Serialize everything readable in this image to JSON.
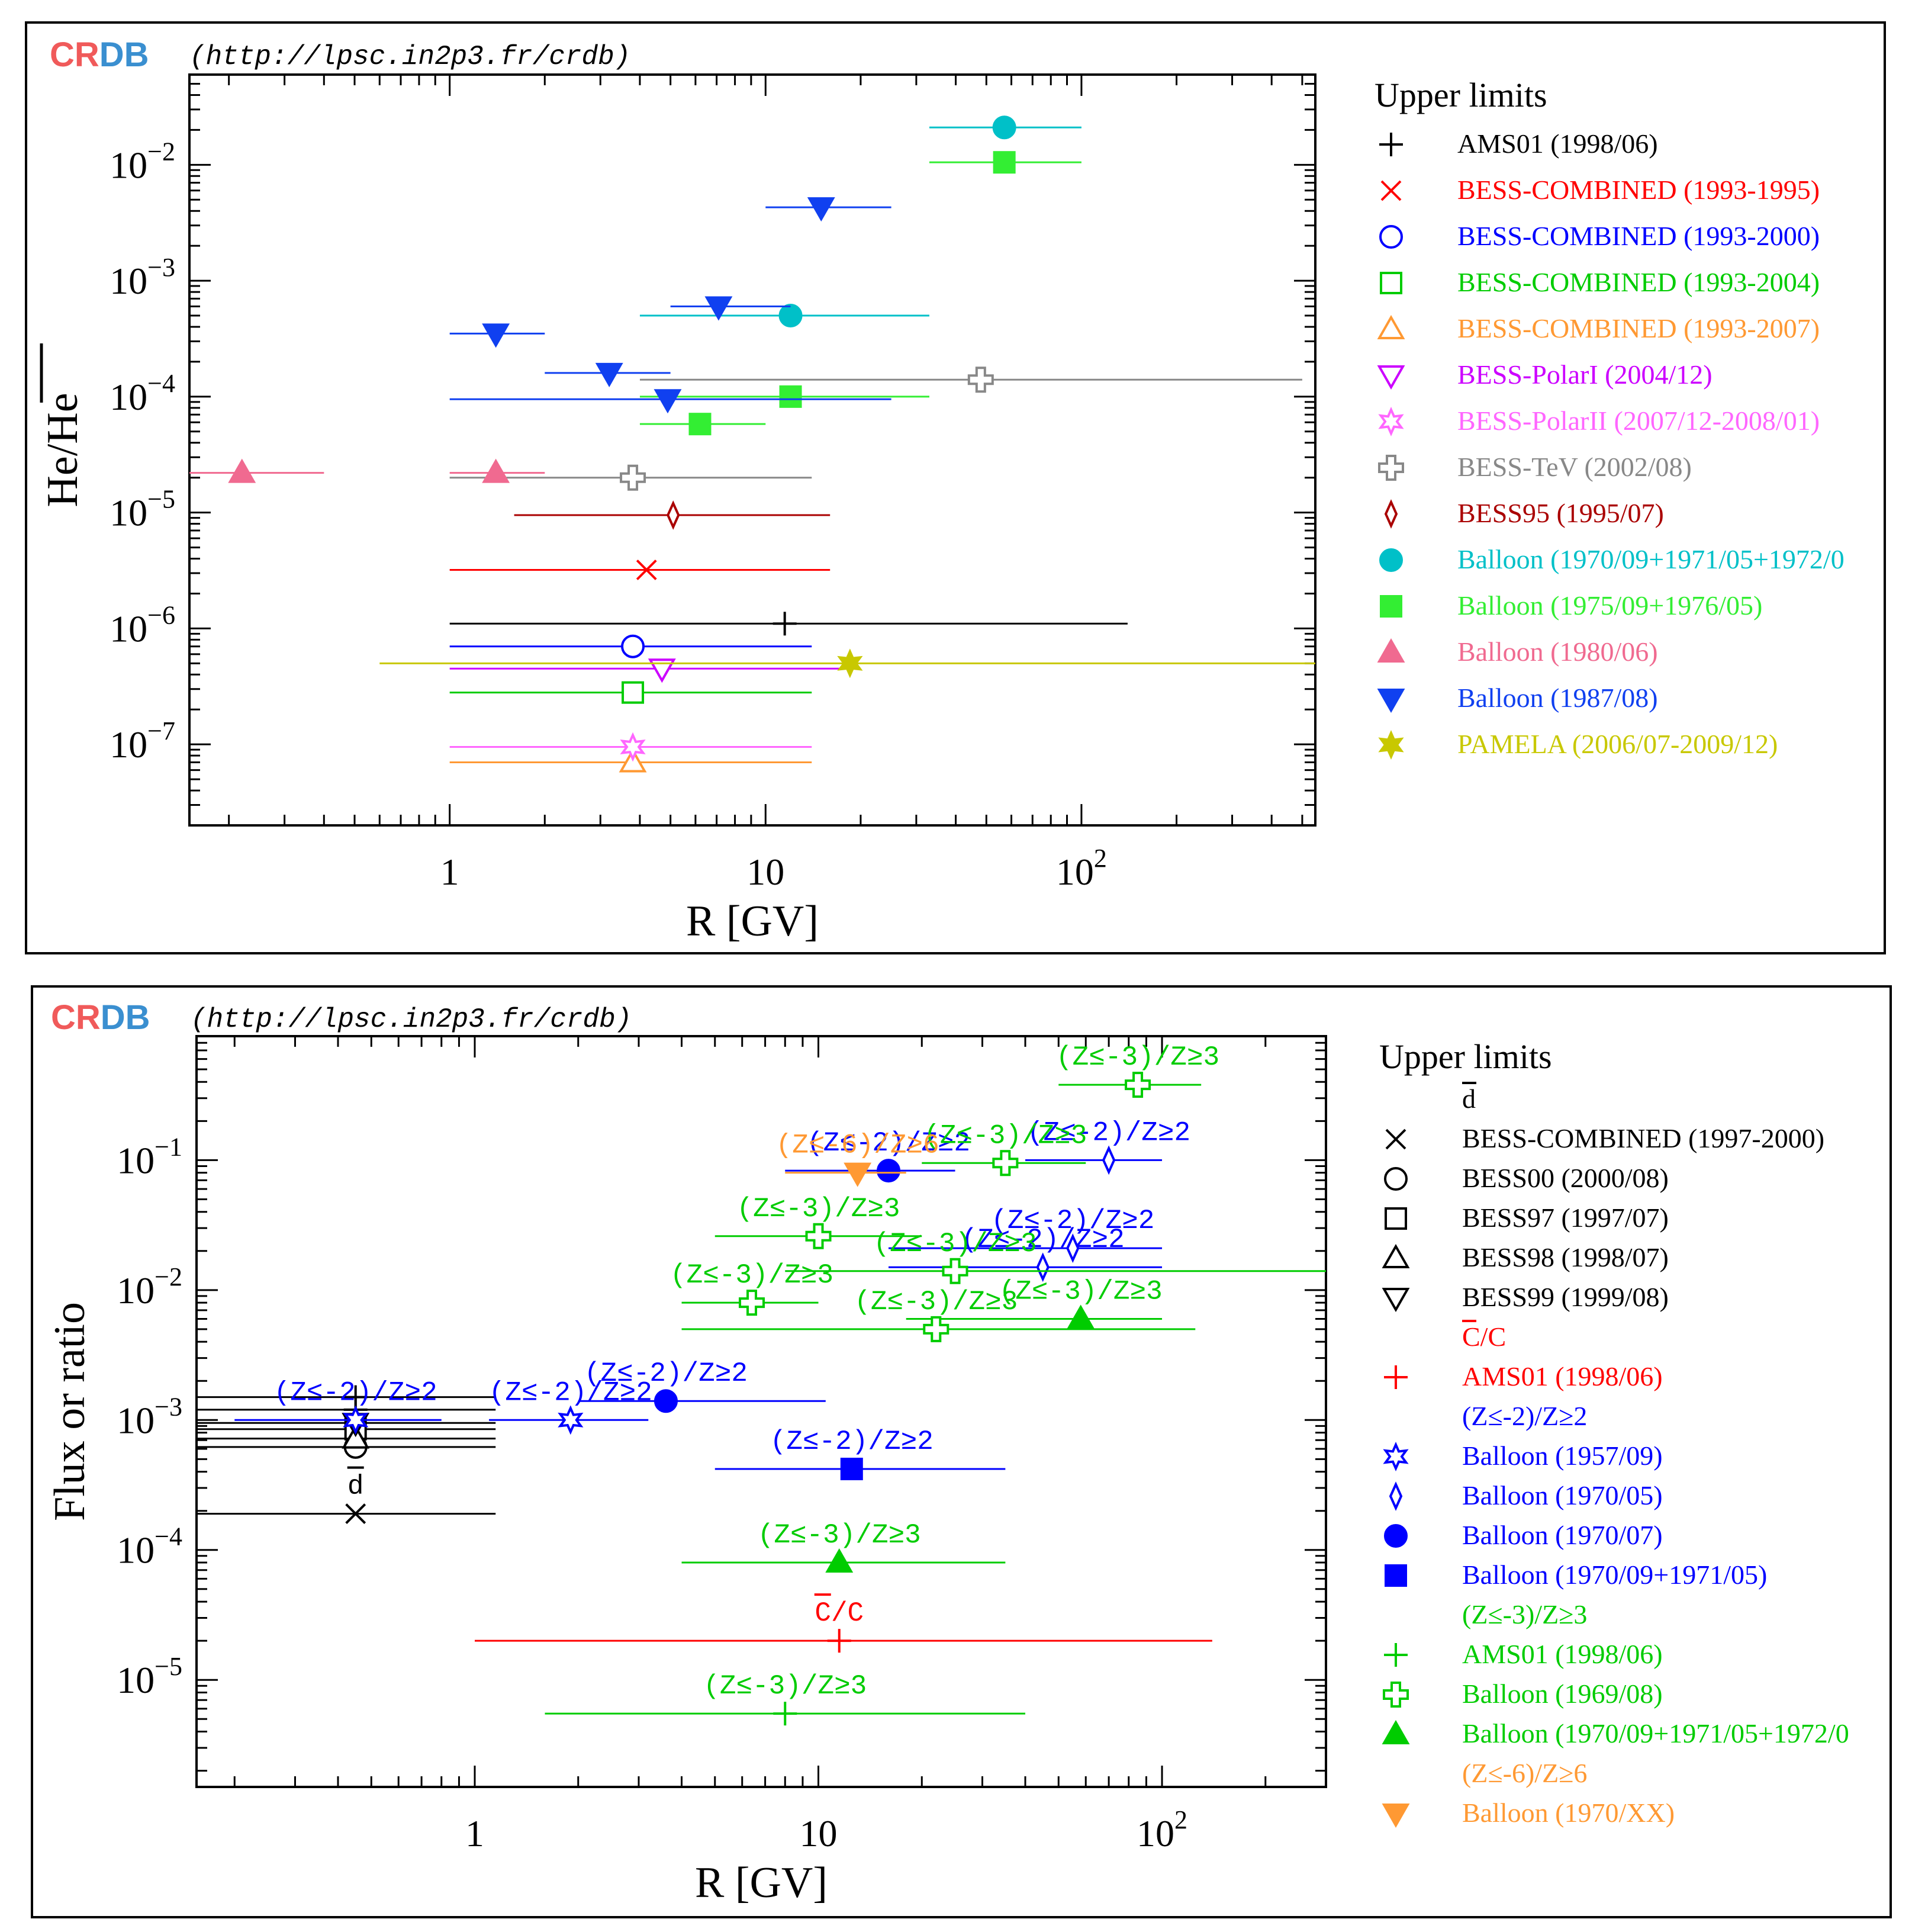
{
  "brand": {
    "crdb_cr": "CR",
    "crdb_db": "DB",
    "url": "(http://lpsc.in2p3.fr/crdb)",
    "cr_color": "#f05a5a",
    "db_color": "#3a8fd0"
  },
  "chart_data": [
    {
      "type": "scatter",
      "xscale": "log",
      "yscale": "log",
      "xlim": [
        0.15,
        550
      ],
      "ylim": [
        2e-08,
        0.06
      ],
      "xlabel": "R [GV]",
      "ylabel": "He/He",
      "ylabel_overline": true,
      "xticks": [
        {
          "v": 1,
          "label": "1"
        },
        {
          "v": 10,
          "label": "10"
        },
        {
          "v": 100,
          "base": "10",
          "exp": "2"
        }
      ],
      "yticks": [
        {
          "v": 1e-07,
          "exp": "−7"
        },
        {
          "v": 1e-06,
          "exp": "−6"
        },
        {
          "v": 1e-05,
          "exp": "−5"
        },
        {
          "v": 0.0001,
          "exp": "−4"
        },
        {
          "v": 0.001,
          "exp": "−3"
        },
        {
          "v": 0.01,
          "exp": "−2"
        }
      ],
      "legend_title": "Upper limits",
      "legend": [
        {
          "label": "AMS01 (1998/06)",
          "color": "#000000",
          "marker": "plus"
        },
        {
          "label": "BESS-COMBINED (1993-1995)",
          "color": "#ff0000",
          "marker": "cross"
        },
        {
          "label": "BESS-COMBINED (1993-2000)",
          "color": "#0000ff",
          "marker": "circle-open"
        },
        {
          "label": "BESS-COMBINED (1993-2004)",
          "color": "#00cc00",
          "marker": "square-open"
        },
        {
          "label": "BESS-COMBINED (1993-2007)",
          "color": "#ff9933",
          "marker": "triangle-up-open"
        },
        {
          "label": "BESS-PolarI (2004/12)",
          "color": "#cc00ff",
          "marker": "triangle-down-open"
        },
        {
          "label": "BESS-PolarII (2007/12-2008/01)",
          "color": "#ff66ff",
          "marker": "star-open"
        },
        {
          "label": "BESS-TeV (2002/08)",
          "color": "#888888",
          "marker": "cross-open"
        },
        {
          "label": "BESS95 (1995/07)",
          "color": "#aa0000",
          "marker": "diamond-open"
        },
        {
          "label": "Balloon (1970/09+1971/05+1972/0",
          "color": "#00c0c8",
          "marker": "circle-filled"
        },
        {
          "label": "Balloon (1975/09+1976/05)",
          "color": "#33ee33",
          "marker": "square-filled"
        },
        {
          "label": "Balloon (1980/06)",
          "color": "#f06a90",
          "marker": "triangle-up-filled"
        },
        {
          "label": "Balloon (1987/08)",
          "color": "#1040f0",
          "marker": "triangle-down-filled"
        },
        {
          "label": "PAMELA (2006/07-2009/12)",
          "color": "#c8c800",
          "marker": "star-filled"
        }
      ],
      "points": [
        {
          "x": 11.5,
          "y": 1.1e-06,
          "xlo": 1.0,
          "xhi": 140,
          "color": "#000000",
          "marker": "plus"
        },
        {
          "x": 4.2,
          "y": 3.2e-06,
          "xlo": 1.0,
          "xhi": 16,
          "color": "#ff0000",
          "marker": "cross"
        },
        {
          "x": 3.8,
          "y": 7e-07,
          "xlo": 1.0,
          "xhi": 14,
          "color": "#0000ff",
          "marker": "circle-open"
        },
        {
          "x": 3.8,
          "y": 2.8e-07,
          "xlo": 1.0,
          "xhi": 14,
          "color": "#00cc00",
          "marker": "square-open"
        },
        {
          "x": 3.8,
          "y": 7e-08,
          "xlo": 1.0,
          "xhi": 14,
          "color": "#ff9933",
          "marker": "triangle-up-open"
        },
        {
          "x": 4.7,
          "y": 4.5e-07,
          "xlo": 1.0,
          "xhi": 20,
          "color": "#cc00ff",
          "marker": "triangle-down-open"
        },
        {
          "x": 3.8,
          "y": 9.5e-08,
          "xlo": 1.0,
          "xhi": 14,
          "color": "#ff66ff",
          "marker": "star-open"
        },
        {
          "x": 48,
          "y": 0.00014,
          "xlo": 4.0,
          "xhi": 500,
          "color": "#888888",
          "marker": "cross-open"
        },
        {
          "x": 3.8,
          "y": 2e-05,
          "xlo": 1.0,
          "xhi": 14,
          "color": "#888888",
          "marker": "cross-open"
        },
        {
          "x": 5.1,
          "y": 9.5e-06,
          "xlo": 1.6,
          "xhi": 16,
          "color": "#aa0000",
          "marker": "diamond-open"
        },
        {
          "x": 57,
          "y": 0.021,
          "xlo": 33,
          "xhi": 100,
          "color": "#00c0c8",
          "marker": "circle-filled"
        },
        {
          "x": 12,
          "y": 0.0005,
          "xlo": 4.0,
          "xhi": 33,
          "color": "#00c0c8",
          "marker": "circle-filled"
        },
        {
          "x": 57,
          "y": 0.0105,
          "xlo": 33,
          "xhi": 100,
          "color": "#33ee33",
          "marker": "square-filled"
        },
        {
          "x": 12,
          "y": 0.0001,
          "xlo": 4.0,
          "xhi": 33,
          "color": "#33ee33",
          "marker": "square-filled"
        },
        {
          "x": 6.2,
          "y": 5.8e-05,
          "xlo": 4.0,
          "xhi": 10,
          "color": "#33ee33",
          "marker": "square-filled"
        },
        {
          "x": 0.22,
          "y": 2.2e-05,
          "xlo": 0.15,
          "xhi": 0.4,
          "color": "#f06a90",
          "marker": "triangle-up-filled"
        },
        {
          "x": 1.4,
          "y": 2.2e-05,
          "xlo": 1.0,
          "xhi": 2.0,
          "color": "#f06a90",
          "marker": "triangle-up-filled"
        },
        {
          "x": 1.4,
          "y": 0.00035,
          "xlo": 1.0,
          "xhi": 2.0,
          "color": "#1040f0",
          "marker": "triangle-down-filled"
        },
        {
          "x": 3.2,
          "y": 0.00016,
          "xlo": 2.0,
          "xhi": 5.0,
          "color": "#1040f0",
          "marker": "triangle-down-filled"
        },
        {
          "x": 4.9,
          "y": 9.5e-05,
          "xlo": 1.0,
          "xhi": 25,
          "color": "#1040f0",
          "marker": "triangle-down-filled"
        },
        {
          "x": 7.1,
          "y": 0.0006,
          "xlo": 5.0,
          "xhi": 12,
          "color": "#1040f0",
          "marker": "triangle-down-filled"
        },
        {
          "x": 15,
          "y": 0.0043,
          "xlo": 10,
          "xhi": 25,
          "color": "#1040f0",
          "marker": "triangle-down-filled"
        },
        {
          "x": 18.5,
          "y": 5e-07,
          "xlo": 0.6,
          "xhi": 550,
          "color": "#c8c800",
          "marker": "star-filled"
        }
      ]
    },
    {
      "type": "scatter",
      "xscale": "log",
      "yscale": "log",
      "xlim": [
        0.155,
        300
      ],
      "ylim": [
        1.5e-06,
        0.9
      ],
      "xlabel": "R [GV]",
      "ylabel": "Flux or ratio",
      "xticks": [
        {
          "v": 1,
          "label": "1"
        },
        {
          "v": 10,
          "label": "10"
        },
        {
          "v": 100,
          "base": "10",
          "exp": "2"
        }
      ],
      "yticks": [
        {
          "v": 1e-05,
          "exp": "−5"
        },
        {
          "v": 0.0001,
          "exp": "−4"
        },
        {
          "v": 0.001,
          "exp": "−3"
        },
        {
          "v": 0.01,
          "exp": "−2"
        },
        {
          "v": 0.1,
          "exp": "−1"
        }
      ],
      "legend_title": "Upper limits",
      "legend": [
        {
          "label": "d",
          "color": "#000000",
          "marker": "none",
          "overline": true
        },
        {
          "label": "BESS-COMBINED (1997-2000)",
          "color": "#000000",
          "marker": "cross"
        },
        {
          "label": "BESS00 (2000/08)",
          "color": "#000000",
          "marker": "circle-open"
        },
        {
          "label": "BESS97 (1997/07)",
          "color": "#000000",
          "marker": "square-open"
        },
        {
          "label": "BESS98 (1998/07)",
          "color": "#000000",
          "marker": "triangle-up-open"
        },
        {
          "label": "BESS99 (1999/08)",
          "color": "#000000",
          "marker": "triangle-down-open"
        },
        {
          "label": "C/C",
          "color": "#ff0000",
          "marker": "none",
          "overline": true
        },
        {
          "label": "AMS01 (1998/06)",
          "color": "#ff0000",
          "marker": "plus"
        },
        {
          "label": "(Z≤-2)/Z≥2",
          "color": "#0000ff",
          "marker": "none"
        },
        {
          "label": "Balloon (1957/09)",
          "color": "#0000ff",
          "marker": "star-open"
        },
        {
          "label": "Balloon (1970/05)",
          "color": "#0000ff",
          "marker": "diamond-open"
        },
        {
          "label": "Balloon (1970/07)",
          "color": "#0000ff",
          "marker": "circle-filled"
        },
        {
          "label": "Balloon (1970/09+1971/05)",
          "color": "#0000ff",
          "marker": "square-filled"
        },
        {
          "label": "(Z≤-3)/Z≥3",
          "color": "#00cc00",
          "marker": "none"
        },
        {
          "label": "AMS01 (1998/06)",
          "color": "#00cc00",
          "marker": "plus"
        },
        {
          "label": "Balloon (1969/08)",
          "color": "#00cc00",
          "marker": "cross-open"
        },
        {
          "label": "Balloon (1970/09+1971/05+1972/0",
          "color": "#00cc00",
          "marker": "triangle-up-filled"
        },
        {
          "label": "(Z≤-6)/Z≥6",
          "color": "#ff9933",
          "marker": "none"
        },
        {
          "label": "Balloon (1970/XX)",
          "color": "#ff9933",
          "marker": "triangle-down-filled"
        }
      ],
      "points": [
        {
          "x": 0.45,
          "y": 0.00019,
          "xlo": 0.155,
          "xhi": 1.15,
          "color": "#000000",
          "marker": "cross",
          "label": "d",
          "label_overline": true
        },
        {
          "x": 0.45,
          "y": 0.00062,
          "xlo": 0.155,
          "xhi": 1.15,
          "color": "#000000",
          "marker": "circle-open"
        },
        {
          "x": 0.45,
          "y": 0.00085,
          "xlo": 0.155,
          "xhi": 1.15,
          "color": "#000000",
          "marker": "square-open"
        },
        {
          "x": 0.45,
          "y": 0.00072,
          "xlo": 0.155,
          "xhi": 1.15,
          "color": "#000000",
          "marker": "triangle-up-open"
        },
        {
          "x": 0.45,
          "y": 0.00095,
          "xlo": 0.155,
          "xhi": 1.15,
          "color": "#000000",
          "marker": "triangle-down-open"
        },
        {
          "x": 0.45,
          "y": 0.0012,
          "xlo": 0.155,
          "xhi": 1.15,
          "color": "#000000",
          "marker": "plus"
        },
        {
          "x": 0.45,
          "y": 0.0015,
          "xlo": 0.155,
          "xhi": 1.15,
          "color": "#000000",
          "marker": "plus"
        },
        {
          "x": 0.45,
          "y": 0.001,
          "xlo": 0.2,
          "xhi": 0.8,
          "color": "#0000ff",
          "marker": "star-open",
          "label": "(Z≤-2)/Z≥2"
        },
        {
          "x": 1.9,
          "y": 0.001,
          "xlo": 1.1,
          "xhi": 3.2,
          "color": "#0000ff",
          "marker": "star-open",
          "label": "(Z≤-2)/Z≥2"
        },
        {
          "x": 3.6,
          "y": 0.0014,
          "xlo": 2.0,
          "xhi": 10.5,
          "color": "#0000ff",
          "marker": "circle-filled",
          "label": "(Z≤-2)/Z≥2"
        },
        {
          "x": 16,
          "y": 0.083,
          "xlo": 8.0,
          "xhi": 25,
          "color": "#0000ff",
          "marker": "circle-filled",
          "label": "(Z≤-2)/Z≥2"
        },
        {
          "x": 12.5,
          "y": 0.00042,
          "xlo": 5.0,
          "xhi": 35,
          "color": "#0000ff",
          "marker": "square-filled",
          "label": "(Z≤-2)/Z≥2"
        },
        {
          "x": 70,
          "y": 0.1,
          "xlo": 40,
          "xhi": 100,
          "color": "#0000ff",
          "marker": "diamond-open",
          "label": "(Z≤-2)/Z≥2"
        },
        {
          "x": 55,
          "y": 0.021,
          "xlo": 16,
          "xhi": 100,
          "color": "#0000ff",
          "marker": "diamond-open",
          "label": "(Z≤-2)/Z≥2"
        },
        {
          "x": 45,
          "y": 0.015,
          "xlo": 16,
          "xhi": 100,
          "color": "#0000ff",
          "marker": "diamond-open",
          "label": "(Z≤-2)/Z≥2"
        },
        {
          "x": 11.5,
          "y": 2e-05,
          "xlo": 1.0,
          "xhi": 140,
          "color": "#ff0000",
          "marker": "plus",
          "label": "C/C",
          "label_overline": true
        },
        {
          "x": 8.0,
          "y": 5.5e-06,
          "xlo": 1.6,
          "xhi": 40,
          "color": "#00cc00",
          "marker": "plus",
          "label": "(Z≤-3)/Z≥3"
        },
        {
          "x": 11.5,
          "y": 8e-05,
          "xlo": 4.0,
          "xhi": 35,
          "color": "#00cc00",
          "marker": "triangle-up-filled",
          "label": "(Z≤-3)/Z≥3"
        },
        {
          "x": 58,
          "y": 0.006,
          "xlo": 18,
          "xhi": 100,
          "color": "#00cc00",
          "marker": "triangle-up-filled",
          "label": "(Z≤-3)/Z≥3"
        },
        {
          "x": 22,
          "y": 0.005,
          "xlo": 4.0,
          "xhi": 125,
          "color": "#00cc00",
          "marker": "cross-open",
          "label": "(Z≤-3)/Z≥3"
        },
        {
          "x": 6.4,
          "y": 0.008,
          "xlo": 4.0,
          "xhi": 10,
          "color": "#00cc00",
          "marker": "cross-open",
          "label": "(Z≤-3)/Z≥3"
        },
        {
          "x": 10,
          "y": 0.026,
          "xlo": 5.0,
          "xhi": 20,
          "color": "#00cc00",
          "marker": "cross-open",
          "label": "(Z≤-3)/Z≥3"
        },
        {
          "x": 35,
          "y": 0.095,
          "xlo": 20,
          "xhi": 60,
          "color": "#00cc00",
          "marker": "cross-open",
          "label": "(Z≤-3)/Z≥3"
        },
        {
          "x": 85,
          "y": 0.38,
          "xlo": 50,
          "xhi": 130,
          "color": "#00cc00",
          "marker": "cross-open",
          "label": "(Z≤-3)/Z≥3"
        },
        {
          "x": 25,
          "y": 0.014,
          "xlo": 8.0,
          "xhi": 300,
          "color": "#00cc00",
          "marker": "cross-open",
          "label": "(Z≤-3)/Z≥3"
        },
        {
          "x": 13,
          "y": 0.08,
          "xlo": 8.0,
          "xhi": 18,
          "color": "#ff9933",
          "marker": "triangle-down-filled",
          "label": "(Z≤-6)/Z≥6"
        }
      ]
    }
  ]
}
